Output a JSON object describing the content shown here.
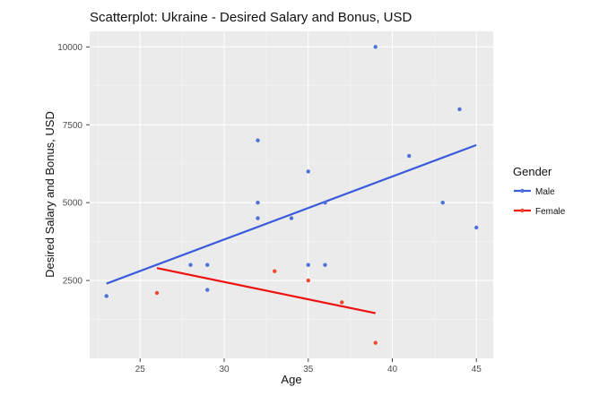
{
  "chart_data": {
    "type": "scatter",
    "title": "Scatterplot: Ukraine - Desired  Salary and Bonus, USD",
    "xlabel": "Age",
    "ylabel": "Desired Salary and Bonus, USD",
    "xlim": [
      22,
      46
    ],
    "ylim": [
      0,
      10500
    ],
    "xticks": [
      25,
      30,
      35,
      40,
      45
    ],
    "yticks": [
      2500,
      5000,
      7500,
      10000
    ],
    "xtick_labels": [
      "25",
      "30",
      "35",
      "40",
      "45"
    ],
    "ytick_labels": [
      "2500",
      "5000",
      "7500",
      "10000"
    ],
    "grid": true,
    "legend": {
      "title": "Gender",
      "position": "right",
      "entries": [
        "Male",
        "Female"
      ]
    },
    "series": [
      {
        "name": "Male",
        "color": "#3b5bdb",
        "point_color": "#4d72d8",
        "points": [
          [
            23,
            2000
          ],
          [
            28,
            3000
          ],
          [
            29,
            3000
          ],
          [
            29,
            2200
          ],
          [
            32,
            7000
          ],
          [
            32,
            5000
          ],
          [
            32,
            4500
          ],
          [
            34,
            4500
          ],
          [
            35,
            6000
          ],
          [
            35,
            3000
          ],
          [
            36,
            5000
          ],
          [
            36,
            3000
          ],
          [
            39,
            10000
          ],
          [
            41,
            6500
          ],
          [
            43,
            5000
          ],
          [
            44,
            8000
          ],
          [
            45,
            4200
          ]
        ],
        "fit_line": [
          [
            23,
            2400
          ],
          [
            45,
            6850
          ]
        ]
      },
      {
        "name": "Female",
        "color": "#ee1111",
        "point_color": "#f0492e",
        "points": [
          [
            26,
            2100
          ],
          [
            33,
            2800
          ],
          [
            35,
            2500
          ],
          [
            37,
            1800
          ],
          [
            39,
            500
          ]
        ],
        "fit_line": [
          [
            26,
            2900
          ],
          [
            39,
            1450
          ]
        ]
      }
    ]
  }
}
